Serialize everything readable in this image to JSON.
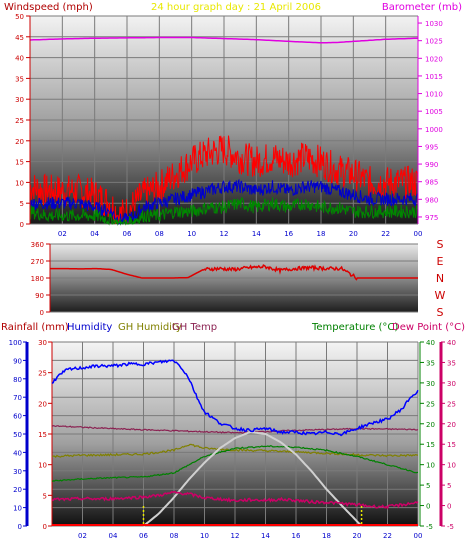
{
  "header": {
    "left_title": "Windspeed (mph)",
    "center_title": "24 hour graph day : 21 April 2006",
    "right_title": "Barometer (mb)"
  },
  "bottom_header": {
    "rainfall": "Rainfall (mm)",
    "humidity": "Humidity",
    "gh_humidity": "GH Humidity",
    "gh_temp": "GH Temp",
    "temperature": "Temperature (°C)",
    "dew_point": "Dew Point (°C)"
  },
  "colors": {
    "windspeed_label": "#b00000",
    "title": "#e8e800",
    "barometer": "#e000e0",
    "gust": "#ff0000",
    "avg_wind": "#0000cc",
    "low_wind": "#008800",
    "direction": "#dd0000",
    "compass": "#cc0000",
    "rain_axis": "#0000cc",
    "humidity": "#0000ff",
    "gh_humidity": "#808000",
    "gh_temp": "#8b2252",
    "temperature": "#008000",
    "dew_point": "#cc0066",
    "solar": "#d0d0d0",
    "sun_marker": "#e8e800"
  },
  "compass": [
    "S",
    "E",
    "N",
    "W",
    "S"
  ],
  "chart_data": [
    {
      "type": "line",
      "title": "24 hour graph day : 21 April 2006",
      "x_ticks": [
        "02",
        "04",
        "06",
        "08",
        "10",
        "12",
        "14",
        "16",
        "18",
        "20",
        "22",
        "00"
      ],
      "y_left_label": "Windspeed (mph)",
      "y_left_ticks": [
        0,
        5,
        10,
        15,
        20,
        25,
        30,
        35,
        40,
        45,
        50
      ],
      "y_left_range": [
        0,
        50
      ],
      "y_right_label": "Barometer (mb)",
      "y_right_ticks": [
        975,
        980,
        985,
        990,
        995,
        1000,
        1005,
        1010,
        1015,
        1020,
        1025,
        1030
      ],
      "y_right_range": [
        973,
        1032
      ],
      "x_range_hours": [
        0,
        24
      ],
      "grid": true,
      "series": [
        {
          "role": "gust",
          "x": [
            0,
            1,
            2,
            3,
            4,
            5,
            5.5,
            6,
            6.5,
            7,
            8,
            9,
            10,
            11,
            12,
            13,
            14,
            15,
            16,
            17,
            18,
            19,
            20,
            21,
            22,
            23,
            24
          ],
          "y": [
            9,
            8,
            8,
            8,
            7,
            5,
            2,
            3,
            5,
            7,
            9,
            12,
            15,
            17,
            18,
            16,
            15,
            16,
            15,
            16,
            15,
            13,
            12,
            10,
            10,
            10,
            10
          ]
        },
        {
          "role": "average",
          "x": [
            0,
            1,
            2,
            3,
            4,
            5,
            5.5,
            6,
            6.5,
            7,
            8,
            9,
            10,
            11,
            12,
            13,
            14,
            15,
            16,
            17,
            18,
            19,
            20,
            21,
            22,
            23,
            24
          ],
          "y": [
            5,
            5,
            5,
            5,
            4,
            3,
            1,
            1,
            2,
            4,
            5,
            6,
            7,
            8,
            9,
            9,
            8,
            9,
            8,
            9,
            9,
            8,
            7,
            6,
            6,
            6,
            6
          ]
        },
        {
          "role": "low",
          "x": [
            0,
            1,
            2,
            3,
            4,
            5,
            5.5,
            6,
            6.5,
            7,
            8,
            9,
            10,
            11,
            12,
            13,
            14,
            15,
            16,
            17,
            18,
            19,
            20,
            21,
            22,
            23,
            24
          ],
          "y": [
            3,
            2,
            2,
            2,
            2,
            1,
            0,
            0,
            1,
            2,
            2,
            3,
            3,
            4,
            4,
            5,
            4,
            5,
            4,
            5,
            4,
            4,
            3,
            3,
            3,
            3,
            3
          ]
        },
        {
          "role": "barometer",
          "x": [
            0,
            2,
            4,
            6,
            8,
            10,
            12,
            14,
            16,
            18,
            19,
            20,
            22,
            24
          ],
          "y": [
            1025.2,
            1025.5,
            1025.7,
            1025.8,
            1025.9,
            1025.9,
            1025.6,
            1025.3,
            1024.8,
            1024.4,
            1024.5,
            1024.8,
            1025.4,
            1025.7
          ]
        }
      ]
    },
    {
      "type": "line",
      "y_left_ticks": [
        0,
        90,
        180,
        270,
        360
      ],
      "y_left_range": [
        0,
        360
      ],
      "x_range_hours": [
        0,
        24
      ],
      "grid": true,
      "series": [
        {
          "role": "wind_direction",
          "x": [
            0,
            1,
            2,
            3,
            4,
            5,
            6,
            7,
            8,
            9,
            10,
            11,
            12,
            13,
            14,
            15,
            16,
            17,
            18,
            19,
            20,
            21,
            22,
            23,
            24
          ],
          "y": [
            230,
            230,
            228,
            230,
            225,
            200,
            180,
            180,
            180,
            182,
            225,
            230,
            225,
            235,
            240,
            220,
            230,
            235,
            230,
            230,
            180,
            180,
            180,
            180,
            180
          ]
        }
      ]
    },
    {
      "type": "line",
      "x_ticks": [
        "02",
        "04",
        "06",
        "08",
        "10",
        "12",
        "14",
        "16",
        "18",
        "20",
        "22",
        "00"
      ],
      "x_range_hours": [
        0,
        24
      ],
      "humidity_ticks": [
        0,
        10,
        20,
        30,
        40,
        50,
        60,
        70,
        80,
        90,
        100
      ],
      "rainfall_ticks": [
        0,
        5,
        10,
        15,
        20,
        25,
        30
      ],
      "temperature_ticks": [
        -5,
        0,
        5,
        10,
        15,
        20,
        25,
        30,
        35,
        40
      ],
      "dew_point_ticks": [
        -5,
        0,
        5,
        10,
        15,
        20,
        25,
        30,
        35,
        40
      ],
      "temperature_range": [
        -5,
        40
      ],
      "grid": true,
      "series": [
        {
          "role": "humidity",
          "x": [
            0,
            0.5,
            1,
            2,
            3,
            4,
            5,
            6,
            7,
            8,
            8.5,
            9,
            9.5,
            10,
            11,
            12,
            13,
            14,
            15,
            16,
            17,
            18,
            19,
            20,
            21,
            22,
            23,
            23.5,
            24
          ],
          "y": [
            78,
            82,
            85,
            86,
            87,
            87,
            88,
            88,
            89,
            90,
            86,
            80,
            70,
            62,
            56,
            53,
            52,
            53,
            51,
            51,
            50,
            51,
            50,
            53,
            56,
            58,
            64,
            70,
            73
          ]
        },
        {
          "role": "temperature",
          "x": [
            0,
            2,
            4,
            6,
            8,
            9,
            10,
            12,
            14,
            16,
            18,
            20,
            22,
            24
          ],
          "y": [
            6,
            6.5,
            6.8,
            7,
            8,
            10,
            12,
            14,
            14.5,
            14.3,
            13.5,
            12,
            10,
            8
          ]
        },
        {
          "role": "gh_humidity",
          "x": [
            0,
            2,
            4,
            6,
            8,
            9,
            10,
            12,
            14,
            16,
            18,
            20,
            22,
            24
          ],
          "y": [
            12,
            12.3,
            12.4,
            12.6,
            13.5,
            15,
            14,
            13.6,
            13.4,
            13.1,
            12.8,
            12.4,
            12.2,
            12.3
          ]
        },
        {
          "role": "gh_temp",
          "x": [
            0,
            4,
            8,
            12,
            16,
            20,
            24
          ],
          "y": [
            19.5,
            18.8,
            18.3,
            17.8,
            18.4,
            18.8,
            18.6
          ]
        },
        {
          "role": "dew_point",
          "x": [
            0,
            1,
            2,
            3,
            4,
            5,
            6,
            7,
            8,
            9,
            10,
            11,
            12,
            13,
            14,
            15,
            16,
            17,
            18,
            19,
            20,
            21,
            22,
            23,
            24
          ],
          "y": [
            1.5,
            1.5,
            1.7,
            1.6,
            1.7,
            1.9,
            2.1,
            2.5,
            3.2,
            2.8,
            1.9,
            1.6,
            1.2,
            1.4,
            1.3,
            1.5,
            1.3,
            0.9,
            0.8,
            0.5,
            0.2,
            -0.2,
            -0.3,
            0.2,
            0.8
          ]
        },
        {
          "role": "solar",
          "x": [
            6,
            7,
            8,
            9,
            10,
            11,
            12,
            13,
            14,
            15,
            16,
            17,
            18,
            19,
            20.3
          ],
          "y": [
            -5,
            -2,
            2,
            6.5,
            10.5,
            14,
            16.5,
            18,
            17.5,
            15.5,
            12.5,
            8.5,
            4,
            0,
            -5
          ]
        },
        {
          "role": "rainfall",
          "x": [
            0,
            24
          ],
          "y": [
            0,
            0
          ]
        }
      ],
      "sun_markers_hours": [
        6,
        20.3
      ]
    }
  ]
}
